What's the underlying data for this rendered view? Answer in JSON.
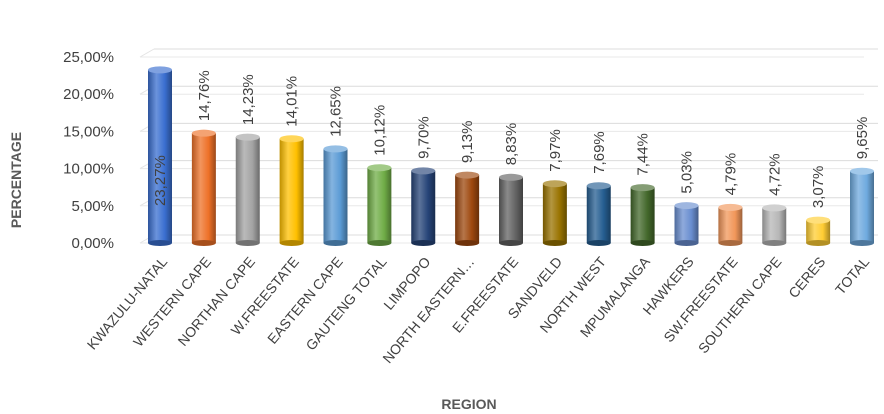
{
  "chart_data": {
    "type": "bar",
    "xlabel": "REGION",
    "ylabel": "PERCENTAGE",
    "ylim": [
      0,
      25
    ],
    "yticks": [
      "0,00%",
      "5,00%",
      "10,00%",
      "15,00%",
      "20,00%",
      "25,00%"
    ],
    "grid": true,
    "legend": "none",
    "categories": [
      "KWAZULU-NATAL",
      "WESTERN CAPE",
      "NORTHAN CAPE",
      "W.FREESTATE",
      "EASTERN CAPE",
      "GAUTENG TOTAL",
      "LIMPOPO",
      "NORTH EASTERN…",
      "E.FREESTATE",
      "SANDVELD",
      "NORTH WEST",
      "MPUMALANGA",
      "HAWKERS",
      "SW.FREESTATE",
      "SOUTHERN CAPE",
      "CERES",
      "TOTAL"
    ],
    "values": [
      23.27,
      14.76,
      14.23,
      14.01,
      12.65,
      10.12,
      9.7,
      9.13,
      8.83,
      7.97,
      7.69,
      7.44,
      5.03,
      4.79,
      4.72,
      3.07,
      9.65
    ],
    "data_labels": [
      "23,27%",
      "14,76%",
      "14,23%",
      "14,01%",
      "12,65%",
      "10,12%",
      "9,70%",
      "9,13%",
      "8,83%",
      "7,97%",
      "7,69%",
      "7,44%",
      "5,03%",
      "4,79%",
      "4,72%",
      "3,07%",
      "9,65%"
    ],
    "colors": [
      "#3a6fd0",
      "#ee7128",
      "#a3a3a3",
      "#ffc000",
      "#5b9bd5",
      "#70ad47",
      "#264478",
      "#9e480e",
      "#636363",
      "#997300",
      "#255e91",
      "#43682b",
      "#698ed0",
      "#f1975a",
      "#b7b7b7",
      "#ffcd33",
      "#6faadf"
    ]
  }
}
